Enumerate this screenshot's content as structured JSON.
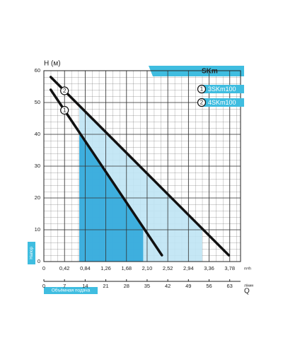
{
  "chart_data": {
    "type": "line",
    "title": "SKm",
    "ylabel": "H (м)",
    "ylabel_side": "Напор",
    "xlabel": "Объёмная подача",
    "x_unit": "m³/h",
    "x2_unit": "л/мин",
    "x2_symbol": "Q",
    "xlim": [
      0,
      4.0
    ],
    "ylim": [
      0,
      60
    ],
    "x2lim": [
      0,
      66.67
    ],
    "xticks": [
      0,
      {
        "value": 0.42,
        "label": "0,42"
      },
      {
        "value": 0.84,
        "label": "0,84"
      },
      {
        "value": 1.26,
        "label": "1,26"
      },
      {
        "value": 1.68,
        "label": "1,68"
      },
      {
        "value": 2.1,
        "label": "2,10"
      },
      {
        "value": 2.52,
        "label": "2,52"
      },
      {
        "value": 2.94,
        "label": "2,94"
      },
      {
        "value": 3.36,
        "label": "3,36"
      },
      {
        "value": 3.78,
        "label": "3,78"
      }
    ],
    "x2ticks": [
      0,
      7,
      14,
      21,
      28,
      35,
      42,
      49,
      56,
      63
    ],
    "yticks": [
      0,
      10,
      20,
      30,
      40,
      50,
      60
    ],
    "grid": true,
    "series": [
      {
        "name": "3SKm100",
        "marker_label": "1",
        "color": "#111111",
        "fill": "#2fa8dc",
        "fill_range": [
          0.72,
          2.02
        ],
        "x": [
          0.14,
          2.4
        ],
        "values": [
          54,
          2
        ]
      },
      {
        "name": "4SKm100",
        "marker_label": "2",
        "color": "#111111",
        "fill": "#bfe4f4",
        "fill_range": [
          0.72,
          3.22
        ],
        "x": [
          0.14,
          3.76
        ],
        "values": [
          58,
          2
        ]
      }
    ]
  }
}
